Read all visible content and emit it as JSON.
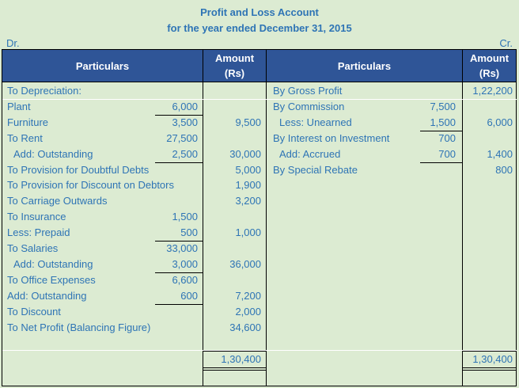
{
  "title": {
    "line1": "Profit and Loss Account",
    "line2": "for the year ended December 31, 2015"
  },
  "side_labels": {
    "debit": "Dr.",
    "credit": "Cr."
  },
  "headers": {
    "particulars": "Particulars",
    "amount": "Amount",
    "amount_unit": "(Rs)"
  },
  "debit_rows": [
    {
      "label": "To Depreciation:",
      "sub": "",
      "amount": ""
    },
    {
      "label": "Plant",
      "sub": "6,000",
      "amount": ""
    },
    {
      "label": "Furniture",
      "sub": "3,500",
      "amount": "9,500"
    },
    {
      "label": "To Rent",
      "sub": "27,500",
      "amount": ""
    },
    {
      "label": " Add: Outstanding",
      "sub": "2,500",
      "amount": "30,000"
    },
    {
      "label": "To Provision for Doubtful Debts",
      "sub": "",
      "amount": "5,000"
    },
    {
      "label": "To Provision for Discount on Debtors",
      "sub": "",
      "amount": "1,900"
    },
    {
      "label": "To Carriage Outwards",
      "sub": "",
      "amount": "3,200"
    },
    {
      "label": "To Insurance",
      "sub": "1,500",
      "amount": ""
    },
    {
      "label": "Less: Prepaid",
      "sub": "500",
      "amount": "1,000"
    },
    {
      "label": "To Salaries",
      "sub": "33,000",
      "amount": ""
    },
    {
      "label": " Add: Outstanding",
      "sub": "3,000",
      "amount": "36,000"
    },
    {
      "label": "To Office Expenses",
      "sub": "6,600",
      "amount": ""
    },
    {
      "label": "Add: Outstanding",
      "sub": "600",
      "amount": "7,200"
    },
    {
      "label": "To Discount",
      "sub": "",
      "amount": "2,000"
    },
    {
      "label": "To Net Profit (Balancing Figure)",
      "sub": "",
      "amount": "34,600"
    }
  ],
  "credit_rows": [
    {
      "label": "By Gross Profit",
      "sub": "",
      "amount": "1,22,200"
    },
    {
      "label": "By Commission",
      "sub": "7,500",
      "amount": ""
    },
    {
      "label": " Less: Unearned",
      "sub": "1,500",
      "amount": "6,000"
    },
    {
      "label": "By Interest on Investment",
      "sub": "700",
      "amount": ""
    },
    {
      "label": " Add: Accrued",
      "sub": "700",
      "amount": "1,400"
    },
    {
      "label": "By Special Rebate",
      "sub": "",
      "amount": "800"
    }
  ],
  "totals": {
    "debit": "1,30,400",
    "credit": "1,30,400"
  },
  "colors": {
    "header_bg": "#2f5597",
    "text": "#2e74b5",
    "background": "#dcebd2"
  }
}
